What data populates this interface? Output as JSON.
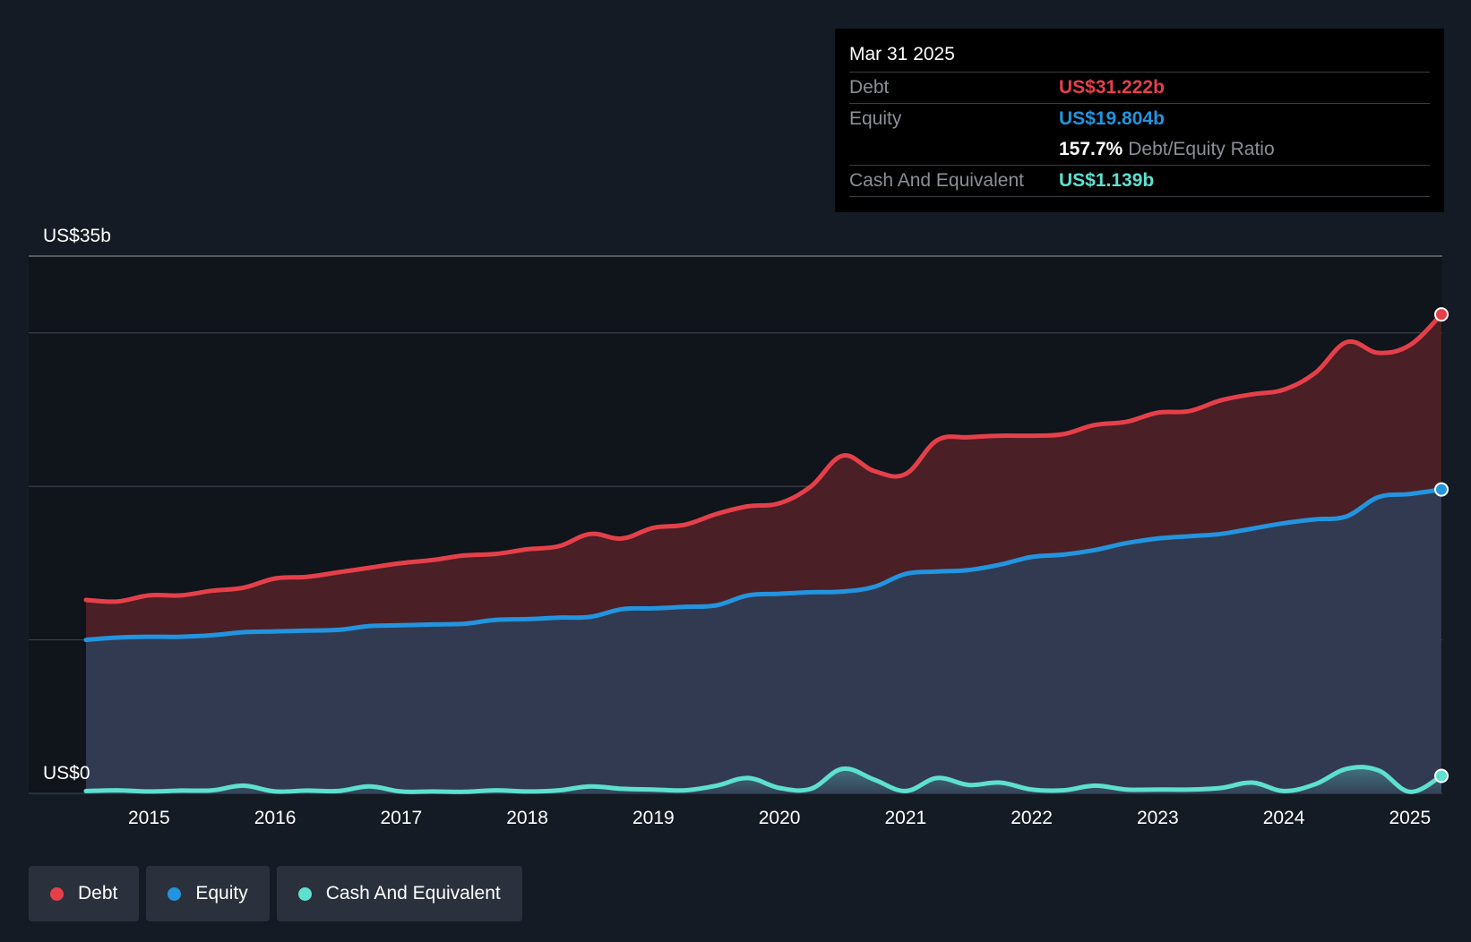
{
  "colors": {
    "background": "#151b24",
    "debt": "#e5404a",
    "equity": "#2394df",
    "cash": "#5ee0d0",
    "debt_fill": "#4a1f25",
    "equity_fill": "#323a52",
    "grid": "#3a4049"
  },
  "tooltip": {
    "date": "Mar 31 2025",
    "debt_label": "Debt",
    "debt_value": "US$31.222b",
    "equity_label": "Equity",
    "equity_value": "US$19.804b",
    "ratio_value": "157.7%",
    "ratio_label": "Debt/Equity Ratio",
    "cash_label": "Cash And Equivalent",
    "cash_value": "US$1.139b"
  },
  "legend": {
    "debt": "Debt",
    "equity": "Equity",
    "cash": "Cash And Equivalent"
  },
  "chart_data": {
    "type": "area",
    "title": "",
    "y_top_label": "US$35b",
    "y_bottom_label": "US$0",
    "ylim": [
      0,
      35
    ],
    "xlim": [
      2014.5,
      2025.25
    ],
    "x_ticks": [
      2015,
      2016,
      2017,
      2018,
      2019,
      2020,
      2021,
      2022,
      2023,
      2024,
      2025
    ],
    "x_tick_labels": [
      "2015",
      "2016",
      "2017",
      "2018",
      "2019",
      "2020",
      "2021",
      "2022",
      "2023",
      "2024",
      "2025"
    ],
    "gridlines": [
      0,
      10,
      20,
      30,
      35
    ],
    "series": [
      {
        "name": "Debt",
        "x": [
          2014.5,
          2014.75,
          2015.0,
          2015.25,
          2015.5,
          2015.75,
          2016.0,
          2016.25,
          2016.5,
          2016.75,
          2017.0,
          2017.25,
          2017.5,
          2017.75,
          2018.0,
          2018.25,
          2018.5,
          2018.75,
          2019.0,
          2019.25,
          2019.5,
          2019.75,
          2020.0,
          2020.25,
          2020.5,
          2020.75,
          2021.0,
          2021.25,
          2021.5,
          2021.75,
          2022.0,
          2022.25,
          2022.5,
          2022.75,
          2023.0,
          2023.25,
          2023.5,
          2023.75,
          2024.0,
          2024.25,
          2024.5,
          2024.75,
          2025.0,
          2025.25
        ],
        "values": [
          12.6,
          12.5,
          12.9,
          12.9,
          13.2,
          13.4,
          14.0,
          14.1,
          14.4,
          14.7,
          15.0,
          15.2,
          15.5,
          15.6,
          15.9,
          16.1,
          16.9,
          16.6,
          17.3,
          17.5,
          18.2,
          18.7,
          18.9,
          20.0,
          22.0,
          21.0,
          20.8,
          23.0,
          23.2,
          23.3,
          23.3,
          23.4,
          24.0,
          24.2,
          24.8,
          24.9,
          25.6,
          26.0,
          26.3,
          27.4,
          29.4,
          28.7,
          29.2,
          31.2
        ]
      },
      {
        "name": "Equity",
        "x": [
          2014.5,
          2014.75,
          2015.0,
          2015.25,
          2015.5,
          2015.75,
          2016.0,
          2016.25,
          2016.5,
          2016.75,
          2017.0,
          2017.25,
          2017.5,
          2017.75,
          2018.0,
          2018.25,
          2018.5,
          2018.75,
          2019.0,
          2019.25,
          2019.5,
          2019.75,
          2020.0,
          2020.25,
          2020.5,
          2020.75,
          2021.0,
          2021.25,
          2021.5,
          2021.75,
          2022.0,
          2022.25,
          2022.5,
          2022.75,
          2023.0,
          2023.25,
          2023.5,
          2023.75,
          2024.0,
          2024.25,
          2024.5,
          2024.75,
          2025.0,
          2025.25
        ],
        "values": [
          10.0,
          10.15,
          10.2,
          10.2,
          10.3,
          10.5,
          10.55,
          10.6,
          10.65,
          10.9,
          10.95,
          11.0,
          11.05,
          11.3,
          11.35,
          11.45,
          11.5,
          12.0,
          12.05,
          12.15,
          12.25,
          12.9,
          13.0,
          13.1,
          13.15,
          13.45,
          14.3,
          14.45,
          14.55,
          14.9,
          15.4,
          15.55,
          15.85,
          16.3,
          16.6,
          16.75,
          16.9,
          17.25,
          17.6,
          17.85,
          18.05,
          19.3,
          19.5,
          19.8
        ]
      },
      {
        "name": "Cash And Equivalent",
        "x": [
          2014.5,
          2014.75,
          2015.0,
          2015.25,
          2015.5,
          2015.75,
          2016.0,
          2016.25,
          2016.5,
          2016.75,
          2017.0,
          2017.25,
          2017.5,
          2017.75,
          2018.0,
          2018.25,
          2018.5,
          2018.75,
          2019.0,
          2019.25,
          2019.5,
          2019.75,
          2020.0,
          2020.25,
          2020.5,
          2020.75,
          2021.0,
          2021.25,
          2021.5,
          2021.75,
          2022.0,
          2022.25,
          2022.5,
          2022.75,
          2023.0,
          2023.25,
          2023.5,
          2023.75,
          2024.0,
          2024.25,
          2024.5,
          2024.75,
          2025.0,
          2025.25
        ],
        "values": [
          0.15,
          0.2,
          0.12,
          0.18,
          0.2,
          0.5,
          0.12,
          0.18,
          0.15,
          0.45,
          0.12,
          0.12,
          0.1,
          0.2,
          0.12,
          0.2,
          0.45,
          0.3,
          0.25,
          0.2,
          0.5,
          1.0,
          0.35,
          0.3,
          1.6,
          0.9,
          0.15,
          1.0,
          0.55,
          0.7,
          0.25,
          0.2,
          0.5,
          0.25,
          0.25,
          0.25,
          0.35,
          0.7,
          0.15,
          0.6,
          1.6,
          1.5,
          0.1,
          1.139
        ]
      }
    ]
  }
}
